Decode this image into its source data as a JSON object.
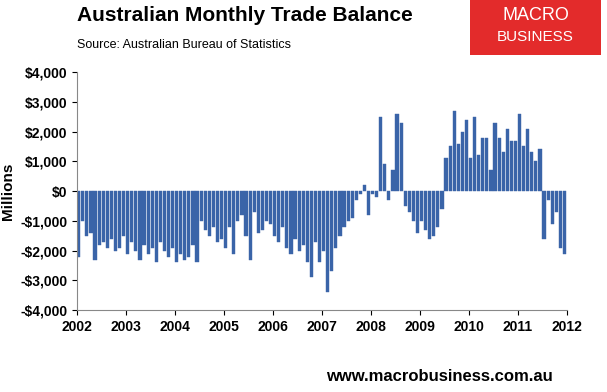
{
  "chart_data": {
    "type": "bar",
    "title": "Australian Monthly Trade Balance",
    "subtitle": "Source: Australian Bureau of Statistics",
    "y_label": "Millions",
    "annotations": [
      "MACRO",
      "BUSINESS",
      "www.macrobusiness.com.au"
    ],
    "color": "#3a64a8",
    "grid": false,
    "x": [
      2002.0,
      2002.083,
      2002.167,
      2002.25,
      2002.333,
      2002.417,
      2002.5,
      2002.583,
      2002.667,
      2002.75,
      2002.833,
      2002.917,
      2003.0,
      2003.083,
      2003.167,
      2003.25,
      2003.333,
      2003.417,
      2003.5,
      2003.583,
      2003.667,
      2003.75,
      2003.833,
      2003.917,
      2004.0,
      2004.083,
      2004.167,
      2004.25,
      2004.333,
      2004.417,
      2004.5,
      2004.583,
      2004.667,
      2004.75,
      2004.833,
      2004.917,
      2005.0,
      2005.083,
      2005.167,
      2005.25,
      2005.333,
      2005.417,
      2005.5,
      2005.583,
      2005.667,
      2005.75,
      2005.833,
      2005.917,
      2006.0,
      2006.083,
      2006.167,
      2006.25,
      2006.333,
      2006.417,
      2006.5,
      2006.583,
      2006.667,
      2006.75,
      2006.833,
      2006.917,
      2007.0,
      2007.083,
      2007.167,
      2007.25,
      2007.333,
      2007.417,
      2007.5,
      2007.583,
      2007.667,
      2007.75,
      2007.833,
      2007.917,
      2008.0,
      2008.083,
      2008.167,
      2008.25,
      2008.333,
      2008.417,
      2008.5,
      2008.583,
      2008.667,
      2008.75,
      2008.833,
      2008.917,
      2009.0,
      2009.083,
      2009.167,
      2009.25,
      2009.333,
      2009.417,
      2009.5,
      2009.583,
      2009.667,
      2009.75,
      2009.833,
      2009.917,
      2010.0,
      2010.083,
      2010.167,
      2010.25,
      2010.333,
      2010.417,
      2010.5,
      2010.583,
      2010.667,
      2010.75,
      2010.833,
      2010.917,
      2011.0,
      2011.083,
      2011.167,
      2011.25,
      2011.333,
      2011.417,
      2011.5,
      2011.583,
      2011.667,
      2011.75,
      2011.833,
      2011.917
    ],
    "values": [
      -2200,
      -1000,
      -1500,
      -1400,
      -2300,
      -1800,
      -1700,
      -1900,
      -1600,
      -2000,
      -1900,
      -1500,
      -2100,
      -1700,
      -2000,
      -2300,
      -1800,
      -2100,
      -1900,
      -2400,
      -1700,
      -2000,
      -2200,
      -1900,
      -2400,
      -2100,
      -2300,
      -2200,
      -1800,
      -2400,
      -1000,
      -1300,
      -1500,
      -1200,
      -1700,
      -1600,
      -1900,
      -1200,
      -2100,
      -1000,
      -800,
      -1500,
      -2300,
      -700,
      -1400,
      -1300,
      -1000,
      -1100,
      -1500,
      -1700,
      -1200,
      -1900,
      -2100,
      -1600,
      -2000,
      -1800,
      -2400,
      -2900,
      -1700,
      -2400,
      -2000,
      -3400,
      -2700,
      -1900,
      -1500,
      -1200,
      -1000,
      -900,
      -300,
      -100,
      200,
      -800,
      -100,
      -200,
      2500,
      900,
      -300,
      700,
      2600,
      2300,
      -500,
      -700,
      -1000,
      -1400,
      -1000,
      -1300,
      -1600,
      -1500,
      -1200,
      -600,
      1100,
      1500,
      2700,
      1600,
      2000,
      2400,
      1100,
      2500,
      1200,
      1800,
      1800,
      700,
      2300,
      1800,
      1300,
      2100,
      1700,
      1700,
      2600,
      1500,
      2100,
      1300,
      1000,
      1400,
      -1600,
      -300,
      -1100,
      -700,
      -1900,
      -2100
    ],
    "xlim": [
      2002,
      2012
    ],
    "xticks": [
      2002,
      2003,
      2004,
      2005,
      2006,
      2007,
      2008,
      2009,
      2010,
      2011,
      2012
    ],
    "ylim": [
      -4000,
      4000
    ],
    "yticks": [
      {
        "value": -4000,
        "label": "-$4,000"
      },
      {
        "value": -3000,
        "label": "-$3,000"
      },
      {
        "value": -2000,
        "label": "-$2,000"
      },
      {
        "value": -1000,
        "label": "-$1,000"
      },
      {
        "value": 0,
        "label": "$0"
      },
      {
        "value": 1000,
        "label": "$1,000"
      },
      {
        "value": 2000,
        "label": "$2,000"
      },
      {
        "value": 3000,
        "label": "$3,000"
      },
      {
        "value": 4000,
        "label": "$4,000"
      }
    ]
  }
}
